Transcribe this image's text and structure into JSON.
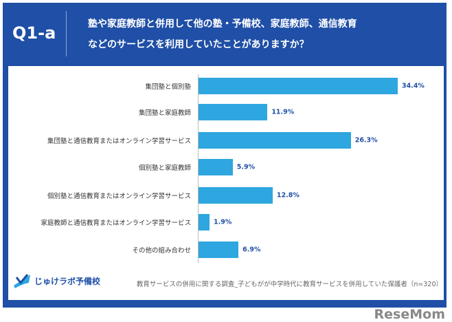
{
  "header": {
    "qid": "Q1-a",
    "title_line1": "塾や家庭教師と併用して他の塾・予備校、家庭教師、通信教育",
    "title_line2": "などのサービスを利用していたことがありますか？"
  },
  "chart_data": {
    "type": "bar",
    "orientation": "horizontal",
    "categories": [
      "集団塾と個別塾",
      "集団塾と家庭教師",
      "集団塾と通信教育またはオンライン学習サービス",
      "個別塾と家庭教師",
      "個別塾と通信教育またはオンライン学習サービス",
      "家庭教師と通信教育またはオンライン学習サービス",
      "その他の組み合わせ"
    ],
    "values": [
      34.4,
      11.9,
      26.3,
      5.9,
      12.8,
      1.9,
      6.9
    ],
    "value_labels": [
      "34.4%",
      "11.9%",
      "26.3%",
      "5.9%",
      "12.8%",
      "1.9%",
      "6.9%"
    ],
    "unit": "%",
    "bar_color": "#2ea6df",
    "grid": false
  },
  "footer": {
    "logo": "じゅけラボ予備校",
    "source": "教育サービスの併用に関する調査_子どもがが中学時代に教育サービスを併用していた保護者（n=320）",
    "watermark": "ReseMom"
  },
  "colors": {
    "frame": "#1f4fa6",
    "bar": "#2ea6df"
  }
}
